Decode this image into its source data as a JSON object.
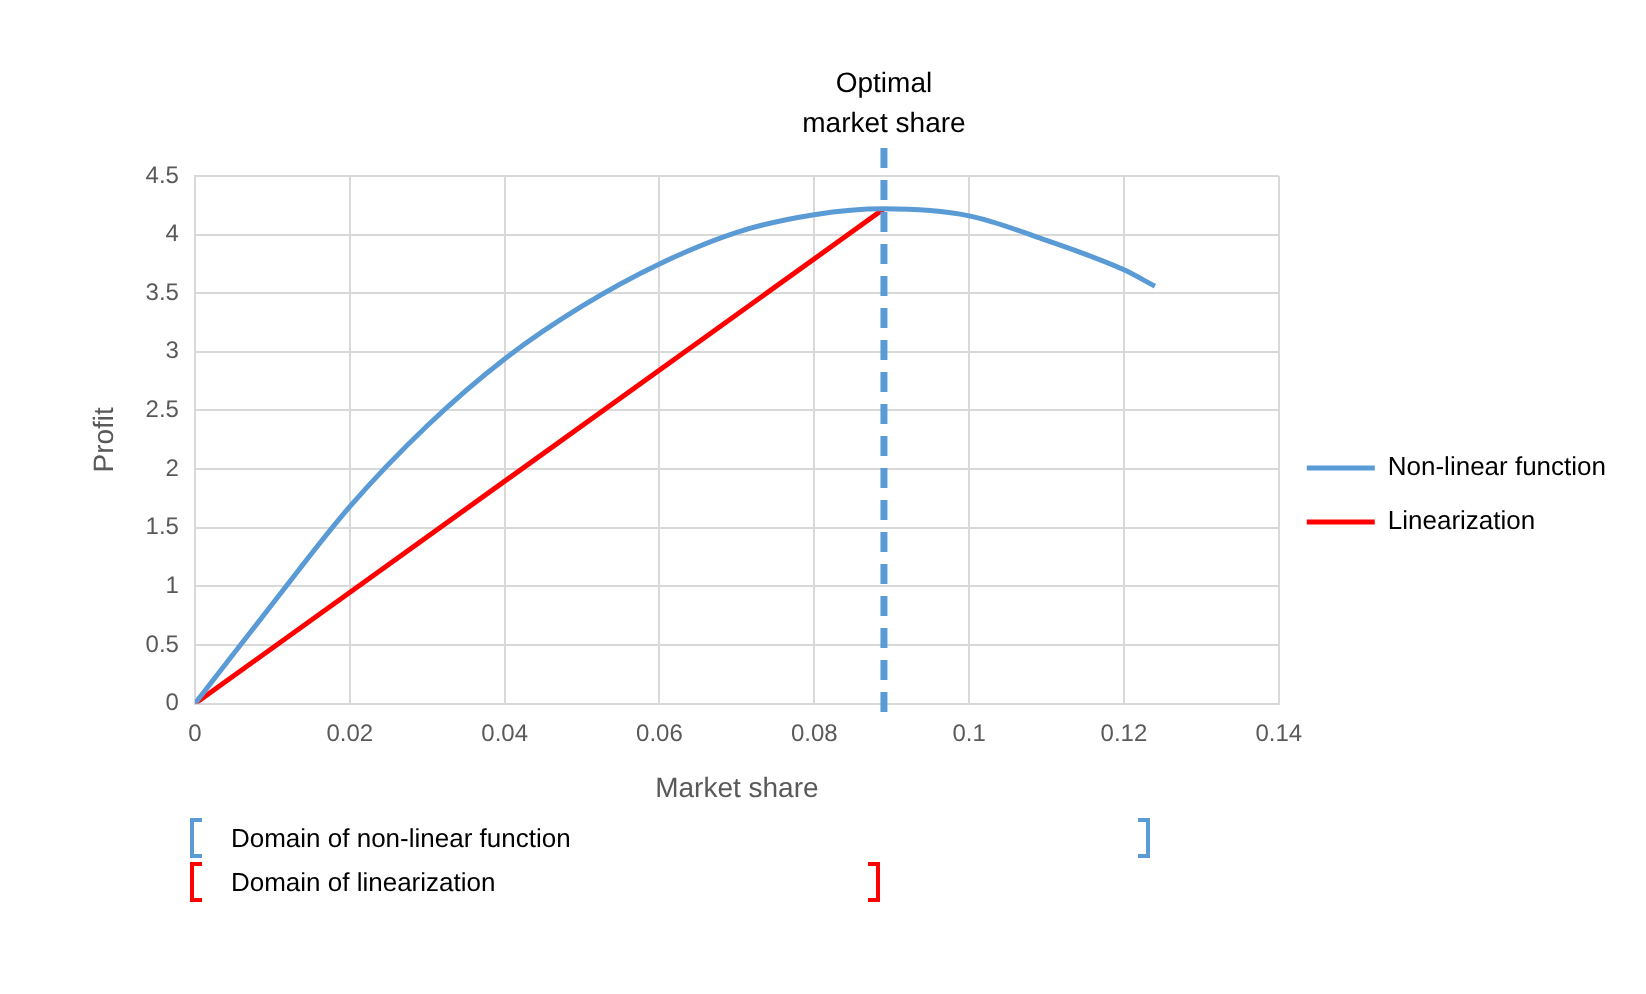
{
  "chart_data": {
    "type": "line",
    "xlabel": "Market share",
    "ylabel": "Profit",
    "xlim": [
      0,
      0.14
    ],
    "xticks": [
      0,
      0.02,
      0.04,
      0.06,
      0.08,
      0.1,
      0.12,
      0.14
    ],
    "ylim": [
      0,
      4.5
    ],
    "yticks": [
      0,
      0.5,
      1,
      1.5,
      2,
      2.5,
      3,
      3.5,
      4,
      4.5
    ],
    "series": [
      {
        "name": "Non-linear function",
        "color": "#5b9bd5",
        "x": [
          0,
          0.01,
          0.02,
          0.03,
          0.04,
          0.05,
          0.06,
          0.07,
          0.08,
          0.089,
          0.1,
          0.11,
          0.12,
          0.124
        ],
        "values": [
          0,
          0.85,
          1.68,
          2.37,
          2.94,
          3.39,
          3.75,
          4.02,
          4.17,
          4.22,
          4.16,
          3.95,
          3.7,
          3.56
        ]
      },
      {
        "name": "Linearization",
        "color": "#ff0000",
        "x": [
          0,
          0.089
        ],
        "values": [
          0,
          4.22
        ]
      }
    ],
    "ref_lines": [
      {
        "axis": "x",
        "value": 0.089,
        "label": "Optimal market share",
        "color": "#5b9bd5",
        "line_style": "dashed"
      }
    ],
    "annotations": [
      "Domain of non-linear function",
      "Domain of linearization"
    ],
    "grid": true,
    "legend": "right",
    "marker": "none",
    "line_style": "solid"
  }
}
